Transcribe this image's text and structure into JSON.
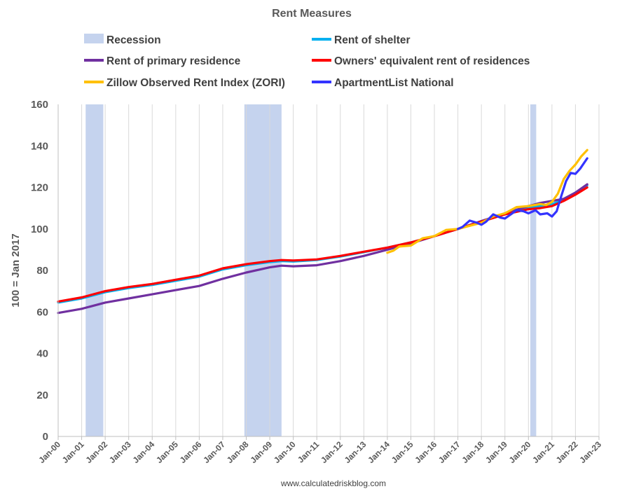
{
  "chart_data": {
    "type": "line",
    "title": "Rent Measures",
    "ylabel": "100 = Jan 2017",
    "xlabel": "",
    "source": "www.calculatedriskblog.com",
    "ylim": [
      0,
      160
    ],
    "xlim": [
      2000,
      2023
    ],
    "y_ticks": [
      0,
      20,
      40,
      60,
      80,
      100,
      120,
      140,
      160
    ],
    "x_ticks": [
      "Jan-00",
      "Jan-01",
      "Jan-02",
      "Jan-03",
      "Jan-04",
      "Jan-05",
      "Jan-06",
      "Jan-07",
      "Jan-08",
      "Jan-09",
      "Jan-10",
      "Jan-11",
      "Jan-12",
      "Jan-13",
      "Jan-14",
      "Jan-15",
      "Jan-16",
      "Jan-17",
      "Jan-18",
      "Jan-19",
      "Jan-20",
      "Jan-21",
      "Jan-22",
      "Jan-23"
    ],
    "grid": "vertical",
    "legend_position": "top",
    "recessions": [
      {
        "start": 2001.17,
        "end": 2001.92
      },
      {
        "start": 2007.92,
        "end": 2009.5
      },
      {
        "start": 2020.08,
        "end": 2020.33
      }
    ],
    "legend": [
      {
        "name": "Recession",
        "color": "#c5d3ee",
        "kind": "box"
      },
      {
        "name": "Rent of shelter",
        "color": "#00b0f0",
        "kind": "line"
      },
      {
        "name": "Rent of primary residence",
        "color": "#7030a0",
        "kind": "line"
      },
      {
        "name": "Owners' equivalent rent of residences",
        "color": "#ff0000",
        "kind": "line"
      },
      {
        "name": "Zillow Observed Rent Index (ZORI)",
        "color": "#ffc000",
        "kind": "line"
      },
      {
        "name": "ApartmentList National",
        "color": "#3333ff",
        "kind": "line"
      }
    ],
    "series": [
      {
        "name": "Rent of shelter",
        "color": "#00b0f0",
        "points": [
          [
            2000,
            64.5
          ],
          [
            2001,
            66.5
          ],
          [
            2002,
            69.5
          ],
          [
            2003,
            71.5
          ],
          [
            2004,
            73
          ],
          [
            2005,
            75
          ],
          [
            2006,
            77
          ],
          [
            2007,
            80.5
          ],
          [
            2008,
            82.5
          ],
          [
            2009,
            84
          ],
          [
            2009.5,
            84.5
          ],
          [
            2010,
            84.3
          ],
          [
            2011,
            85
          ],
          [
            2012,
            86.7
          ],
          [
            2013,
            88.8
          ],
          [
            2014,
            91
          ],
          [
            2015,
            93.5
          ],
          [
            2016,
            96.5
          ],
          [
            2017,
            100
          ],
          [
            2018,
            103.5
          ],
          [
            2019,
            107.5
          ],
          [
            2020,
            110.5
          ],
          [
            2020.5,
            111
          ],
          [
            2021,
            112
          ],
          [
            2021.5,
            114
          ],
          [
            2022,
            117.5
          ],
          [
            2022.5,
            121
          ]
        ]
      },
      {
        "name": "Rent of primary residence",
        "color": "#7030a0",
        "points": [
          [
            2000,
            59.5
          ],
          [
            2001,
            61.5
          ],
          [
            2002,
            64.5
          ],
          [
            2003,
            66.5
          ],
          [
            2004,
            68.5
          ],
          [
            2005,
            70.5
          ],
          [
            2006,
            72.5
          ],
          [
            2007,
            76
          ],
          [
            2008,
            79
          ],
          [
            2009,
            81.5
          ],
          [
            2009.5,
            82.3
          ],
          [
            2010,
            82
          ],
          [
            2011,
            82.5
          ],
          [
            2012,
            84.5
          ],
          [
            2013,
            87
          ],
          [
            2014,
            90
          ],
          [
            2015,
            93
          ],
          [
            2016,
            96.5
          ],
          [
            2017,
            100
          ],
          [
            2018,
            103.8
          ],
          [
            2019,
            107.5
          ],
          [
            2020,
            111
          ],
          [
            2020.5,
            112.5
          ],
          [
            2021,
            113.5
          ],
          [
            2021.5,
            114.5
          ],
          [
            2022,
            117.5
          ],
          [
            2022.5,
            121.5
          ]
        ]
      },
      {
        "name": "Owners' equivalent rent of residences",
        "color": "#ff0000",
        "points": [
          [
            2000,
            65
          ],
          [
            2001,
            67
          ],
          [
            2002,
            70
          ],
          [
            2003,
            72
          ],
          [
            2004,
            73.5
          ],
          [
            2005,
            75.5
          ],
          [
            2006,
            77.5
          ],
          [
            2007,
            81
          ],
          [
            2008,
            83
          ],
          [
            2009,
            84.5
          ],
          [
            2009.5,
            85
          ],
          [
            2010,
            84.8
          ],
          [
            2011,
            85.3
          ],
          [
            2012,
            87
          ],
          [
            2013,
            89
          ],
          [
            2014,
            91
          ],
          [
            2015,
            93.5
          ],
          [
            2016,
            96.5
          ],
          [
            2017,
            100
          ],
          [
            2018,
            103.5
          ],
          [
            2019,
            107
          ],
          [
            2020,
            109.5
          ],
          [
            2020.5,
            110
          ],
          [
            2021,
            111
          ],
          [
            2021.5,
            113.5
          ],
          [
            2022,
            116.5
          ],
          [
            2022.5,
            120
          ]
        ]
      },
      {
        "name": "Zillow Observed Rent Index (ZORI)",
        "color": "#ffc000",
        "points": [
          [
            2014,
            88.5
          ],
          [
            2014.25,
            89.5
          ],
          [
            2014.5,
            91.5
          ],
          [
            2015,
            92
          ],
          [
            2015.5,
            95.5
          ],
          [
            2016,
            96.5
          ],
          [
            2016.5,
            99.5
          ],
          [
            2017,
            100
          ],
          [
            2017.5,
            101.5
          ],
          [
            2018,
            103
          ],
          [
            2018.5,
            106
          ],
          [
            2019,
            107.5
          ],
          [
            2019.5,
            110.5
          ],
          [
            2020,
            111
          ],
          [
            2020.5,
            112
          ],
          [
            2020.75,
            111.5
          ],
          [
            2021,
            113
          ],
          [
            2021.25,
            117
          ],
          [
            2021.5,
            124
          ],
          [
            2021.75,
            128
          ],
          [
            2022,
            131
          ],
          [
            2022.25,
            135
          ],
          [
            2022.5,
            138
          ]
        ]
      },
      {
        "name": "ApartmentList National",
        "color": "#3333ff",
        "points": [
          [
            2017,
            100
          ],
          [
            2017.2,
            101
          ],
          [
            2017.5,
            104
          ],
          [
            2017.8,
            103
          ],
          [
            2018,
            102
          ],
          [
            2018.2,
            103.5
          ],
          [
            2018.5,
            107
          ],
          [
            2018.8,
            105.5
          ],
          [
            2019,
            105
          ],
          [
            2019.5,
            109
          ],
          [
            2019.8,
            108.5
          ],
          [
            2020,
            107.5
          ],
          [
            2020.3,
            109
          ],
          [
            2020.5,
            107
          ],
          [
            2020.8,
            107.5
          ],
          [
            2021,
            106
          ],
          [
            2021.2,
            108.5
          ],
          [
            2021.4,
            116
          ],
          [
            2021.6,
            123
          ],
          [
            2021.8,
            127
          ],
          [
            2022,
            126.5
          ],
          [
            2022.2,
            129
          ],
          [
            2022.5,
            134
          ]
        ]
      }
    ]
  }
}
